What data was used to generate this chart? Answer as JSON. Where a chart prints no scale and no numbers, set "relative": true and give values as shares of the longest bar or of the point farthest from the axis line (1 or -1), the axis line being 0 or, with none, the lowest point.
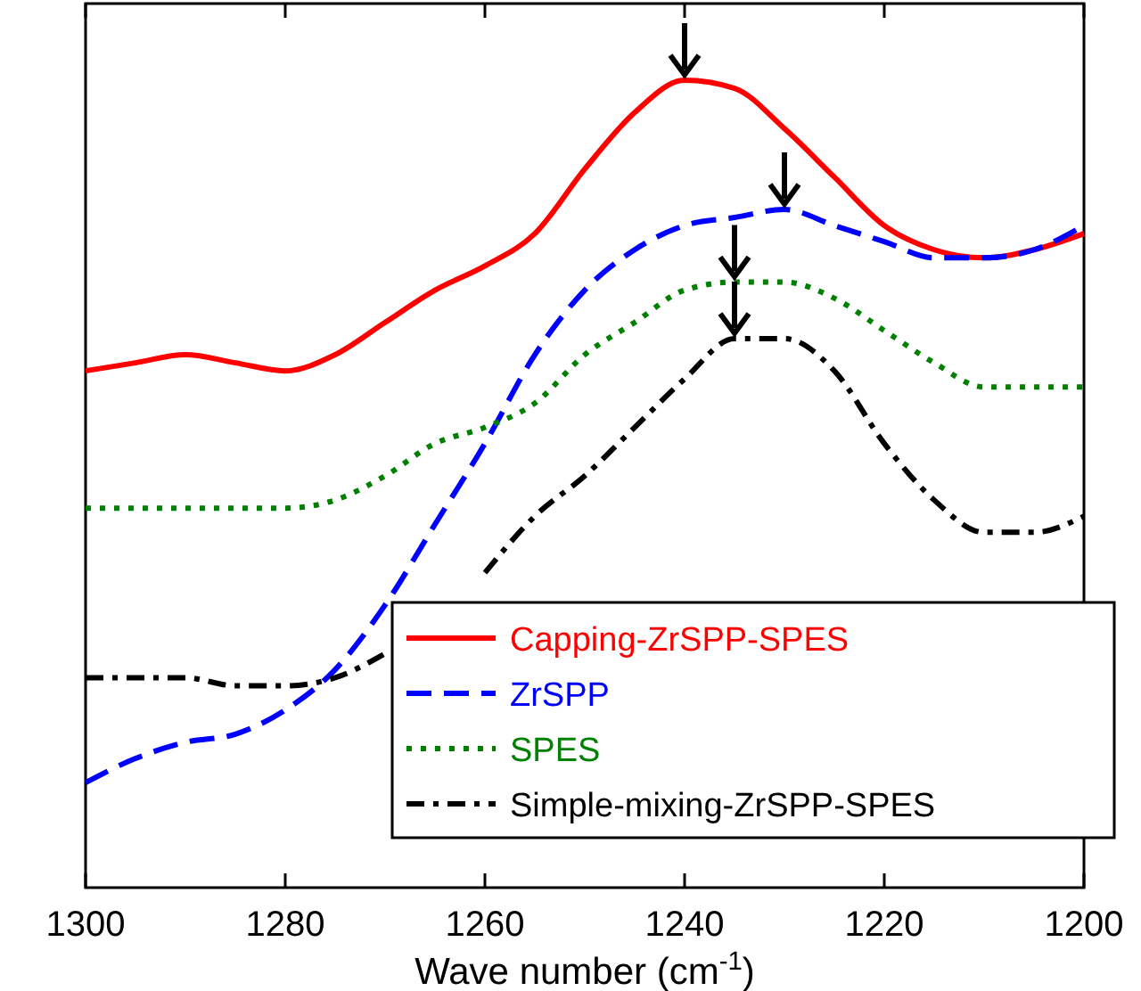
{
  "chart_data": {
    "type": "line",
    "relative": true,
    "xlabel": "Wave number (cm$^{-1}$)",
    "x": [
      1300,
      1295,
      1290,
      1285,
      1280,
      1275,
      1270,
      1265,
      1260,
      1255,
      1250,
      1245,
      1240,
      1235,
      1230,
      1225,
      1220,
      1215,
      1210,
      1205,
      1200
    ],
    "xlim": [
      1300,
      1200
    ],
    "xticks": [
      1300,
      1280,
      1260,
      1240,
      1220,
      1200
    ],
    "tick_labels": "x",
    "legend": "bottom right",
    "series": [
      {
        "name": "Capping-ZrSPP-SPES",
        "color": "#ff0000",
        "line_style": "solid",
        "values": [
          0.64,
          0.65,
          0.66,
          0.65,
          0.64,
          0.66,
          0.7,
          0.74,
          0.77,
          0.81,
          0.89,
          0.96,
          1.0,
          0.99,
          0.94,
          0.88,
          0.82,
          0.79,
          0.78,
          0.79,
          0.81
        ]
      },
      {
        "name": "ZrSPP",
        "color": "#0000ff",
        "line_style": "dashed",
        "values": [
          0.13,
          0.16,
          0.18,
          0.19,
          0.22,
          0.27,
          0.35,
          0.45,
          0.55,
          0.66,
          0.74,
          0.79,
          0.82,
          0.83,
          0.84,
          0.82,
          0.8,
          0.78,
          0.78,
          0.79,
          0.82
        ]
      },
      {
        "name": "SPES",
        "color": "#008000",
        "line_style": "dotted",
        "values": [
          0.47,
          0.47,
          0.47,
          0.47,
          0.47,
          0.48,
          0.51,
          0.55,
          0.57,
          0.6,
          0.66,
          0.7,
          0.74,
          0.75,
          0.75,
          0.73,
          0.69,
          0.65,
          0.62,
          0.62,
          0.62
        ]
      },
      {
        "name": "Simple-mixing-ZrSPP-SPES",
        "color": "#000000",
        "line_style": "dashdot",
        "values": [
          0.26,
          0.26,
          0.26,
          0.25,
          0.25,
          0.26,
          0.29,
          null,
          0.39,
          0.46,
          0.51,
          0.57,
          0.63,
          0.68,
          0.68,
          0.64,
          0.55,
          0.48,
          0.44,
          0.44,
          0.46
        ]
      }
    ]
  }
}
